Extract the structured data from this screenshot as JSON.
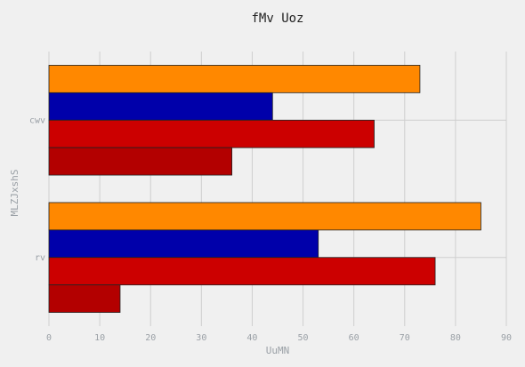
{
  "chart_data": {
    "type": "bar",
    "orientation": "horizontal",
    "title": "fMv Uoz",
    "xlabel": "UuMN",
    "ylabel": "MLZJxshS",
    "categories": [
      "rv",
      "cwv"
    ],
    "xlim": [
      0,
      90
    ],
    "xticks": [
      0,
      10,
      20,
      30,
      40,
      50,
      60,
      70,
      80,
      90
    ],
    "grid": true,
    "legend": "none",
    "series": [
      {
        "values": [
          85,
          73
        ],
        "color": "#ff8800"
      },
      {
        "values": [
          53,
          44
        ],
        "color": "#0000aa"
      },
      {
        "values": [
          76,
          64
        ],
        "color": "#cc0000"
      },
      {
        "values": [
          14,
          36
        ],
        "color": "#b30000"
      }
    ]
  }
}
